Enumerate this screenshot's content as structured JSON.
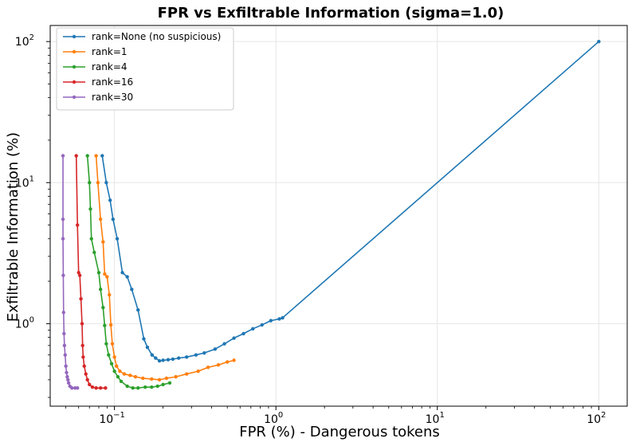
{
  "chart_data": {
    "type": "line",
    "title": "FPR vs Exfiltrable Information (sigma=1.0)",
    "xlabel": "FPR (%) - Dangerous tokens",
    "ylabel": "Exfiltrable Information (%)",
    "xscale": "log",
    "yscale": "log",
    "xlim": [
      0.04,
      150
    ],
    "ylim": [
      0.26,
      130
    ],
    "xticks": [
      {
        "value": 0.1,
        "base": "10",
        "exp": "−1"
      },
      {
        "value": 1,
        "base": "10",
        "exp": "0"
      },
      {
        "value": 10,
        "base": "10",
        "exp": "1"
      },
      {
        "value": 100,
        "base": "10",
        "exp": "2"
      }
    ],
    "yticks": [
      {
        "value": 1,
        "base": "10",
        "exp": "0"
      },
      {
        "value": 10,
        "base": "10",
        "exp": "1"
      },
      {
        "value": 100,
        "base": "10",
        "exp": "2"
      }
    ],
    "grid": true,
    "legend_position": "top-left",
    "series": [
      {
        "name": "rank=None (no suspicious)",
        "color": "#1f77b4",
        "x": [
          0.084,
          0.089,
          0.094,
          0.098,
          0.104,
          0.112,
          0.12,
          0.128,
          0.14,
          0.152,
          0.16,
          0.171,
          0.18,
          0.19,
          0.2,
          0.215,
          0.23,
          0.25,
          0.28,
          0.32,
          0.36,
          0.42,
          0.48,
          0.55,
          0.63,
          0.72,
          0.82,
          0.93,
          1.05,
          1.1,
          100
        ],
        "y": [
          15.5,
          10.0,
          7.5,
          5.5,
          4.0,
          2.3,
          2.15,
          1.75,
          1.25,
          0.78,
          0.68,
          0.6,
          0.57,
          0.545,
          0.55,
          0.555,
          0.56,
          0.57,
          0.58,
          0.6,
          0.62,
          0.66,
          0.72,
          0.79,
          0.85,
          0.92,
          0.98,
          1.05,
          1.08,
          1.1,
          100
        ]
      },
      {
        "name": "rank=1",
        "color": "#ff7f0e",
        "x": [
          0.077,
          0.079,
          0.082,
          0.085,
          0.087,
          0.09,
          0.093,
          0.095,
          0.097,
          0.1,
          0.103,
          0.108,
          0.115,
          0.125,
          0.135,
          0.15,
          0.17,
          0.19,
          0.21,
          0.24,
          0.28,
          0.33,
          0.38,
          0.44,
          0.5,
          0.55
        ],
        "y": [
          15.5,
          10.0,
          5.5,
          3.8,
          2.25,
          2.15,
          1.6,
          0.98,
          0.72,
          0.58,
          0.5,
          0.46,
          0.44,
          0.43,
          0.42,
          0.41,
          0.405,
          0.4,
          0.41,
          0.42,
          0.44,
          0.46,
          0.49,
          0.51,
          0.535,
          0.55
        ]
      },
      {
        "name": "rank=4",
        "color": "#2ca02c",
        "x": [
          0.068,
          0.07,
          0.071,
          0.072,
          0.075,
          0.08,
          0.082,
          0.085,
          0.087,
          0.089,
          0.092,
          0.096,
          0.1,
          0.105,
          0.11,
          0.12,
          0.13,
          0.14,
          0.155,
          0.17,
          0.185,
          0.2,
          0.22
        ],
        "y": [
          15.5,
          10.0,
          6.5,
          4.0,
          3.2,
          2.3,
          1.75,
          1.3,
          0.97,
          0.72,
          0.6,
          0.52,
          0.46,
          0.42,
          0.39,
          0.36,
          0.35,
          0.35,
          0.355,
          0.355,
          0.36,
          0.37,
          0.38
        ]
      },
      {
        "name": "rank=16",
        "color": "#d62728",
        "x": [
          0.058,
          0.059,
          0.06,
          0.061,
          0.062,
          0.063,
          0.0635,
          0.064,
          0.065,
          0.0665,
          0.068,
          0.07,
          0.073,
          0.077,
          0.082,
          0.088
        ],
        "y": [
          15.5,
          5.0,
          2.3,
          2.2,
          1.5,
          1.0,
          0.7,
          0.58,
          0.5,
          0.44,
          0.4,
          0.37,
          0.355,
          0.35,
          0.35,
          0.35
        ]
      },
      {
        "name": "rank=30",
        "color": "#9467bd",
        "x": [
          0.048,
          0.048,
          0.048,
          0.0482,
          0.0484,
          0.0487,
          0.049,
          0.0495,
          0.05,
          0.0505,
          0.051,
          0.0515,
          0.052,
          0.053,
          0.0545,
          0.057,
          0.059
        ],
        "y": [
          15.5,
          5.5,
          4.0,
          2.2,
          1.2,
          0.85,
          0.7,
          0.6,
          0.5,
          0.45,
          0.42,
          0.4,
          0.38,
          0.36,
          0.35,
          0.35,
          0.35
        ]
      }
    ]
  }
}
